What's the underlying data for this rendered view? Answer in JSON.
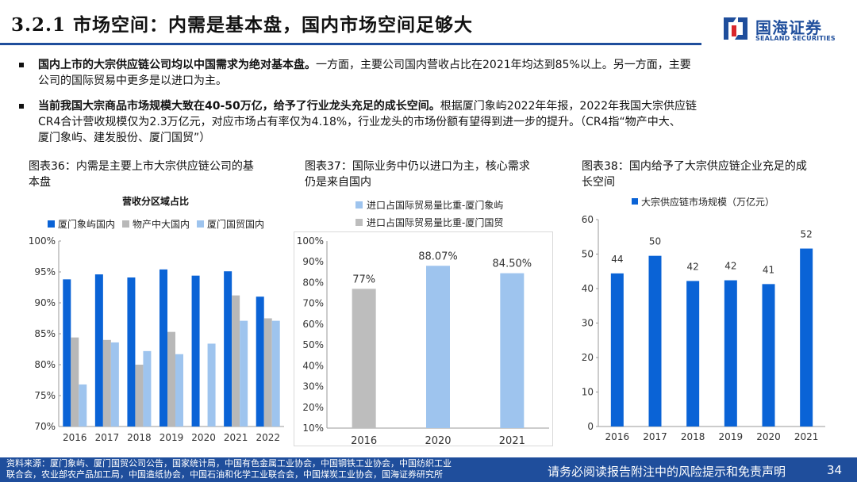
{
  "header": {
    "title": "3.2.1 市场空间：内需是基本盘，国内市场空间足够大",
    "logo_cn": "国海证券",
    "logo_en": "SEALAND SECURITIES"
  },
  "bullets": [
    {
      "bold": "国内上市的大宗供应链公司均以中国需求为绝对基本盘。",
      "text_line1": "一方面，主要公司国内营收占比在2021年均达到85%以上。另一方面，主要",
      "text_line2": "公司的国际贸易中更多是以进口为主。"
    },
    {
      "bold": "当前我国大宗商品市场规模大致在40-50万亿，给予了行业龙头充足的成长空间。",
      "text_line1": "根据厦门象屿2022年年报，2022年我国大宗供应链",
      "text_line2": "CR4合计营收规模仅为2.3万亿元，对应市场占有率仅为4.18%，行业龙头的市场份额有望得到进一步的提升。（CR4指“物产中大、",
      "text_line3": "厦门象屿、建发股份、厦门国贸”）"
    }
  ],
  "figures": [
    {
      "caption_line1": "图表36：内需是主要上市大宗供应链公司的基",
      "caption_line2": "本盘"
    },
    {
      "caption_line1": "图表37：国际业务中仍以进口为主，核心需求",
      "caption_line2": "仍是来自国内"
    },
    {
      "caption_line1": "图表38：国内给予了大宗供应链企业充足的成",
      "caption_line2": "长空间"
    }
  ],
  "chart_data": [
    {
      "type": "bar",
      "title": "营收分区域占比",
      "categories": [
        "2016",
        "2017",
        "2018",
        "2019",
        "2020",
        "2021",
        "2022"
      ],
      "series": [
        {
          "name": "厦门象屿国内",
          "color": "#0a63d6",
          "values": [
            93.8,
            94.6,
            94.1,
            95.4,
            94.4,
            95.1,
            91.0
          ]
        },
        {
          "name": "物产中大国内",
          "color": "#b8b8b8",
          "values": [
            84.4,
            84.0,
            80.0,
            85.3,
            null,
            91.2,
            87.5
          ]
        },
        {
          "name": "厦门国贸国内",
          "color": "#9ec4ee",
          "values": [
            76.8,
            83.6,
            82.2,
            81.7,
            83.4,
            87.1,
            87.1
          ]
        }
      ],
      "ylim": [
        70,
        100
      ],
      "yticks": [
        "70%",
        "75%",
        "80%",
        "85%",
        "90%",
        "95%",
        "100%"
      ],
      "legend": "top"
    },
    {
      "type": "bar",
      "title": "",
      "categories": [
        "2016",
        "2020",
        "2021"
      ],
      "values": [
        77.0,
        88.07,
        84.5
      ],
      "bar_colors": [
        "#bdbdbd",
        "#9ec4ee",
        "#9ec4ee"
      ],
      "data_labels": [
        "77%",
        "88.07%",
        "84.50%"
      ],
      "legend_entries": [
        {
          "name": "进口占国际贸易量比重-厦门象屿",
          "color": "#9ec4ee"
        },
        {
          "name": "进口占国际贸易量比重-厦门国贸",
          "color": "#bdbdbd"
        }
      ],
      "ylim": [
        10,
        100
      ],
      "yticks": [
        "10%",
        "20%",
        "30%",
        "40%",
        "50%",
        "60%",
        "70%",
        "80%",
        "90%",
        "100%"
      ],
      "legend": "top"
    },
    {
      "type": "bar",
      "title": "",
      "categories": [
        "2016",
        "2017",
        "2018",
        "2019",
        "2020",
        "2021"
      ],
      "series": [
        {
          "name": "大宗供应链市场规模（万亿元）",
          "color": "#0a63d6",
          "values": [
            44.4,
            49.5,
            42.2,
            42.4,
            41.3,
            51.6
          ]
        }
      ],
      "data_labels": [
        "44",
        "50",
        "42",
        "42",
        "41",
        "52"
      ],
      "ylim": [
        0,
        60
      ],
      "yticks": [
        "0",
        "10",
        "20",
        "30",
        "40",
        "50",
        "60"
      ],
      "legend": "top"
    }
  ],
  "footer": {
    "source_line1": "资料来源：厦门象屿、厦门国贸公司公告，国家统计局，中国有色金属工业协会，中国钢铁工业协会，中国纺织工业",
    "source_line2": "联合会，农业部农产品加工局，中国造纸协会，中国石油和化学工业联合会，中国煤炭工业协会，国海证券研究所",
    "disclaimer": "请务必阅读报告附注中的风险提示和免责声明",
    "page": "34"
  }
}
